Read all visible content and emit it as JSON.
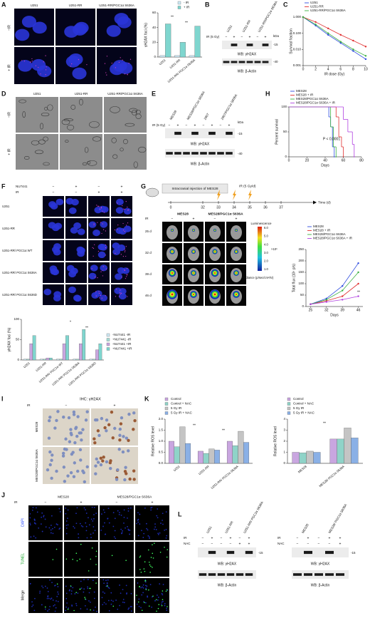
{
  "panels": {
    "A": {
      "letter": "A",
      "columns": [
        "U251",
        "U251-RR",
        "U251-RR/PGC1α S636A"
      ],
      "rows": [
        "−IR",
        "+ IR"
      ]
    },
    "B": {
      "letter": "B",
      "lanes": [
        "U251",
        "U251-RR",
        "U251-RR/PGC1α S636A"
      ],
      "ir_label": "IR (5 Gy)",
      "ir": [
        "−",
        "+",
        "−",
        "+",
        "−",
        "+"
      ],
      "kda": "kDa",
      "marker1": "-15",
      "blot1": "WB: γH2AX",
      "marker2": "-40",
      "blot2": "WB: β-Actin"
    },
    "C": {
      "letter": "C"
    },
    "D": {
      "letter": "D",
      "columns": [
        "U251",
        "U251-RR",
        "U251-RR/PGC1α S636A"
      ],
      "rows": [
        "−IR",
        "+ IR"
      ]
    },
    "E": {
      "letter": "E",
      "lanes": [
        "MES28",
        "MES28/PGC1α S636A",
        "2907",
        "2907/PGC1α S636A"
      ],
      "ir_label": "IR (5 Gy)",
      "ir": [
        "−",
        "+",
        "−",
        "+",
        "−",
        "+",
        "−",
        "+"
      ],
      "kda": "kDa",
      "marker1": "-15",
      "blot1": "WB: γH2AX",
      "marker2": "-40",
      "blot2": "WB: β-Actin"
    },
    "H": {
      "letter": "H"
    },
    "F": {
      "letter": "F",
      "nu_label": "NU7441",
      "nu": [
        "−",
        "+",
        "−",
        "+"
      ],
      "ir_label": "IR",
      "ir": [
        "−",
        "−",
        "+",
        "+"
      ],
      "rows": [
        "U251",
        "U251-RR",
        "U251-RR/ PGC1α WT",
        "U251-RR/ PGC1α S636A",
        "U251-RR/ PGC1α S636D"
      ]
    },
    "G": {
      "letter": "G",
      "timeline_title": "Intracranial injection of MES28",
      "ir_label": "IR (5 Gy/d)",
      "days": [
        0,
        32,
        33,
        34,
        35,
        36,
        37
      ],
      "time_label": "Time (d)",
      "groups": [
        "MES28",
        "MES28/PGC1α S636A"
      ],
      "ir_row_label": "IR",
      "ir": [
        "−",
        "+",
        "−",
        "+"
      ],
      "rows": [
        "25 d",
        "32 d",
        "39 d",
        "46 d"
      ],
      "colorbar_title": "Luminescence",
      "colorbar_ticks": [
        "6.0",
        "5.0",
        "4.0",
        "3.0",
        "2.0",
        "1.0"
      ],
      "colorbar_unit": "×10⁶",
      "radiance": "Radiance (p/sec/cm²/sr)"
    },
    "I": {
      "letter": "I",
      "title": "IHC: γH2AX",
      "ir_label": "IR",
      "ir": [
        "−",
        "+"
      ],
      "rows": [
        "MES28",
        "MES28/PGC1α S636A"
      ]
    },
    "K": {
      "letter": "K"
    },
    "J": {
      "letter": "J",
      "groups": [
        "MES28",
        "MES28/PGC1α S636A"
      ],
      "ir_label": "IR",
      "ir": [
        "−",
        "+",
        "−",
        "+"
      ],
      "rows": [
        "DAPI",
        "TUNEL",
        "Merge"
      ]
    },
    "L": {
      "letter": "L",
      "left": {
        "lanes": [
          "U251",
          "U251-RR",
          "U251-RR/ PGC1α S636A"
        ],
        "ir_label": "IR",
        "ir": [
          "−",
          "+",
          "−",
          "+",
          "−",
          "+"
        ],
        "nac_label": "NAC",
        "nac": [
          "−",
          "−",
          "−",
          "−",
          "+",
          "+"
        ],
        "marker": "-15",
        "blot1": "WB: γH2AX",
        "blot2": "WB: β-Actin"
      },
      "right": {
        "lanes": [
          "MES28",
          "MES28/ PGC1α S636A"
        ],
        "ir_label": "IR",
        "ir": [
          "−",
          "+",
          "−",
          "+",
          "+"
        ],
        "nac_label": "NAC",
        "nac": [
          "−",
          "−",
          "−",
          "−",
          "+"
        ],
        "marker": "-15",
        "blot1": "WB: γH2AX",
        "blot2": "WB: β-Actin"
      }
    }
  },
  "chart_data": [
    {
      "type": "bar",
      "ylabel": "γH2AX foci (%)",
      "categories": [
        "U251",
        "U251-RR",
        "U251-RR/ PGC1α S636A"
      ],
      "series": [
        {
          "name": "- IR",
          "color": "#cfeaf7",
          "values": [
            2,
            2,
            2
          ]
        },
        {
          "name": "+ IR",
          "color": "#7fd6cf",
          "values": [
            45,
            20,
            42
          ]
        }
      ],
      "ylim": [
        0,
        60
      ],
      "yticks": [
        0,
        20,
        40,
        60
      ],
      "annotations": [
        "**",
        "**"
      ]
    },
    {
      "type": "line",
      "log_y": true,
      "ylabel": "Survival fraction",
      "xlabel": "IR dose (Gy)",
      "x": [
        0,
        2,
        4,
        6,
        8,
        10
      ],
      "series": [
        {
          "name": "U251",
          "color": "#2f4de0",
          "values": [
            1,
            0.3,
            0.08,
            0.025,
            0.008,
            0.0025
          ]
        },
        {
          "name": "U251-RR",
          "color": "#e03030",
          "values": [
            1,
            0.5,
            0.2,
            0.08,
            0.035,
            0.015
          ]
        },
        {
          "name": "U251-RR/PGC1α S636A",
          "color": "#3cb043",
          "values": [
            1,
            0.35,
            0.1,
            0.03,
            0.01,
            0.004
          ]
        }
      ],
      "xlim": [
        0,
        10
      ],
      "xticks": [
        0,
        2,
        4,
        6,
        8,
        10
      ],
      "ylim": [
        0.001,
        1
      ],
      "yticks": [
        {
          "value": 1,
          "label": "1.000"
        },
        {
          "value": 0.1,
          "label": "0.100"
        },
        {
          "value": 0.01,
          "label": "0.010"
        },
        {
          "value": 0.001,
          "label": "0.001"
        }
      ]
    },
    {
      "type": "line",
      "step": true,
      "ylabel": "Percent survival",
      "xlabel": "Days",
      "series": [
        {
          "name": "MES28",
          "color": "#2f4de0",
          "x": [
            0,
            44,
            46,
            48,
            50
          ],
          "values": [
            100,
            80,
            60,
            20,
            0
          ]
        },
        {
          "name": "MES28 + IR",
          "color": "#e03030",
          "x": [
            0,
            52,
            55,
            58,
            60
          ],
          "values": [
            100,
            80,
            40,
            20,
            0
          ]
        },
        {
          "name": "MES28/PGC1α S636A",
          "color": "#3cb043",
          "x": [
            0,
            46,
            49,
            52
          ],
          "values": [
            100,
            60,
            20,
            0
          ]
        },
        {
          "name": "MES28/PGC1α S636A + IR",
          "color": "#b040e0",
          "x": [
            0,
            60,
            65,
            70,
            72
          ],
          "values": [
            100,
            75,
            50,
            25,
            0
          ]
        }
      ],
      "xlim": [
        0,
        80
      ],
      "xticks": [
        0,
        20,
        40,
        60,
        80
      ],
      "ylim": [
        0,
        100
      ],
      "yticks": [
        0,
        50,
        100
      ],
      "annotations": [
        "P < 0.0001"
      ]
    },
    {
      "type": "bar",
      "ylabel": "γH2AX foci (%)",
      "categories": [
        "U251",
        "U251-RR",
        "U251-RR/ PGC1α WT",
        "U251-RR/ PGC1α S636A",
        "U251-RR/ PGC1α S636D"
      ],
      "series": [
        {
          "name": "-NU7441 -IR",
          "color": "#cfeaf7",
          "values": [
            2,
            2,
            2,
            2,
            2
          ]
        },
        {
          "name": "+NU7441 -IR",
          "color": "#a6dcd6",
          "values": [
            2,
            2,
            2,
            2,
            2
          ]
        },
        {
          "name": "-NU7441 +IR",
          "color": "#c9a6e0",
          "values": [
            40,
            5,
            40,
            40,
            25
          ]
        },
        {
          "name": "+NU7441 +IR",
          "color": "#7fd6cf",
          "values": [
            60,
            5,
            60,
            75,
            40
          ]
        }
      ],
      "ylim": [
        0,
        100
      ],
      "yticks": [
        0,
        50,
        100
      ],
      "annotations": [
        "*",
        "**"
      ]
    },
    {
      "type": "line",
      "ylabel": "Total flux (10⁸ p/s)",
      "xlabel": "Days",
      "x": [
        25,
        32,
        39,
        46
      ],
      "series": [
        {
          "name": "MES28",
          "color": "#2f4de0",
          "values": [
            10,
            35,
            90,
            190
          ]
        },
        {
          "name": "MES28 + IR",
          "color": "#e03030",
          "values": [
            10,
            25,
            45,
            100
          ]
        },
        {
          "name": "MES28/PGC1α S636A",
          "color": "#3cb043",
          "values": [
            10,
            30,
            70,
            150
          ]
        },
        {
          "name": "MES28/PGC1α S636A + IR",
          "color": "#b040e0",
          "values": [
            10,
            20,
            30,
            45
          ]
        }
      ],
      "xlim": [
        23,
        48
      ],
      "xticks": [
        25,
        32,
        39,
        46
      ],
      "ylim": [
        0,
        250
      ],
      "yticks": [
        0,
        50,
        100,
        150,
        200,
        250
      ],
      "annotations": [
        "**"
      ]
    },
    {
      "type": "bar",
      "ylabel": "Relative ROS level",
      "categories": [
        "U251",
        "U251-RR",
        "U251-RR/ PGC1α S636A"
      ],
      "series": [
        {
          "name": "Control",
          "color": "#c9a6e0",
          "values": [
            1.0,
            0.55,
            1.0
          ]
        },
        {
          "name": "Control + NAC",
          "color": "#8fd3c8",
          "values": [
            0.75,
            0.45,
            0.8
          ]
        },
        {
          "name": "5 Gy IR",
          "color": "#c4c4c4",
          "values": [
            1.65,
            0.65,
            1.45
          ]
        },
        {
          "name": "5 Gy IR + NAC",
          "color": "#8ab0e6",
          "values": [
            0.9,
            0.6,
            0.95
          ]
        }
      ],
      "ylim": [
        0,
        2
      ],
      "yticks": [
        {
          "value": 0,
          "label": "0.0"
        },
        0.5,
        {
          "value": 1,
          "label": "1.0"
        },
        1.5,
        {
          "value": 2,
          "label": "2.0"
        }
      ],
      "annotations": [
        "**",
        "**"
      ]
    },
    {
      "type": "bar",
      "ylabel": "Relative ROS level",
      "categories": [
        "MES28",
        "MES28/ PGC1α S636A"
      ],
      "series": [
        {
          "name": "Control",
          "color": "#c9a6e0",
          "values": [
            1.0,
            2.2
          ]
        },
        {
          "name": "Control + NAC",
          "color": "#8fd3c8",
          "values": [
            0.95,
            2.2
          ]
        },
        {
          "name": "5 Gy IR",
          "color": "#c4c4c4",
          "values": [
            1.1,
            3.2
          ]
        },
        {
          "name": "5 Gy IR + NAC",
          "color": "#8ab0e6",
          "values": [
            1.0,
            2.3
          ]
        }
      ],
      "ylim": [
        0,
        4
      ],
      "yticks": [
        0,
        1,
        2,
        3,
        4
      ],
      "annotations": [
        "**"
      ]
    }
  ]
}
